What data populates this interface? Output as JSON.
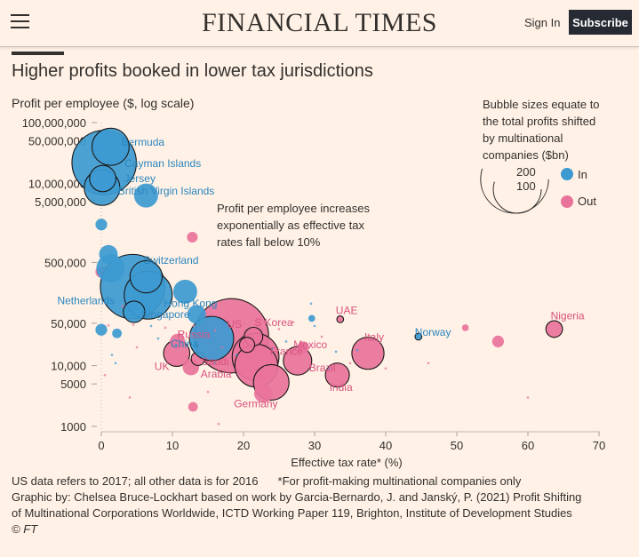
{
  "header": {
    "brand": "FINANCIAL TIMES",
    "sign_in": "Sign In",
    "subscribe": "Subscribe"
  },
  "chart_data": {
    "type": "scatter",
    "title": "Higher profits booked in lower tax jurisdictions",
    "ylabel": "Profit per employee ($, log scale)",
    "xlabel": "Effective tax rate* (%)",
    "xlim": [
      0,
      70
    ],
    "ylim": [
      1000,
      100000000
    ],
    "yscale": "log",
    "x_ticks": [
      "0",
      "10",
      "20",
      "30",
      "40",
      "50",
      "60",
      "70"
    ],
    "y_ticks": [
      {
        "v": 100000000,
        "label": "100,000,000"
      },
      {
        "v": 50000000,
        "label": "50,000,000"
      },
      {
        "v": 10000000,
        "label": "10,000,000"
      },
      {
        "v": 5000000,
        "label": "5,000,000"
      },
      {
        "v": 500000,
        "label": "500,000"
      },
      {
        "v": 50000,
        "label": "50,000"
      },
      {
        "v": 10000,
        "label": "10,000"
      },
      {
        "v": 5000,
        "label": "5000"
      },
      {
        "v": 1000,
        "label": "1000"
      }
    ],
    "colors": {
      "in": "#3d9ad1",
      "out": "#e9739b"
    },
    "legend": {
      "note": [
        "Bubble sizes equate to",
        "the total profits shifted",
        "by multinational",
        "companies ($bn)"
      ],
      "size_labels": [
        "200",
        "100"
      ],
      "in_label": "In",
      "out_label": "Out",
      "placement": "top-right"
    },
    "annotation": [
      "Profit per employee increases",
      "exponentially as effective tax",
      "rates fall below 10%"
    ],
    "series": [
      {
        "name": "In",
        "points": [
          {
            "label": "Bermuda",
            "x": 1.3,
            "y": 40000000,
            "size": 60,
            "outlined": true
          },
          {
            "label": "Cayman Islands",
            "x": 0.4,
            "y": 22000000,
            "size": 180,
            "outlined": true
          },
          {
            "label": "Jersey",
            "x": 0.2,
            "y": 12000000,
            "size": 30,
            "outlined": true
          },
          {
            "label": "British Virgin Islands",
            "x": 0.1,
            "y": 8500000,
            "size": 55,
            "outlined": true
          },
          {
            "label": "",
            "x": 6.3,
            "y": 6300000,
            "size": 25,
            "outlined": false
          },
          {
            "label": "",
            "x": 0.0,
            "y": 2100000,
            "size": 6,
            "outlined": false
          },
          {
            "label": "",
            "x": 1.0,
            "y": 680000,
            "size": 15,
            "outlined": false
          },
          {
            "label": "Switzerland",
            "x": 1.3,
            "y": 400000,
            "size": 35,
            "outlined": false
          },
          {
            "label": "",
            "x": 6.3,
            "y": 290000,
            "size": 45,
            "outlined": true
          },
          {
            "label": "Netherlands",
            "x": 4.4,
            "y": 200000,
            "size": 180,
            "outlined": true
          },
          {
            "label": "",
            "x": 6.6,
            "y": 145000,
            "size": 100,
            "outlined": true
          },
          {
            "label": "Hong Kong",
            "x": 11.8,
            "y": 165000,
            "size": 25,
            "outlined": false
          },
          {
            "label": "Singapore",
            "x": 4.6,
            "y": 77000,
            "size": 20,
            "outlined": true
          },
          {
            "label": "",
            "x": 13.4,
            "y": 70000,
            "size": 15,
            "outlined": false
          },
          {
            "label": "",
            "x": 0.0,
            "y": 39000,
            "size": 6,
            "outlined": false
          },
          {
            "label": "",
            "x": 2.2,
            "y": 34000,
            "size": 4,
            "outlined": false
          },
          {
            "label": "China",
            "x": 15.5,
            "y": 28000,
            "size": 85,
            "outlined": true
          },
          {
            "label": "",
            "x": 29.6,
            "y": 60000,
            "size": 2,
            "outlined": false
          },
          {
            "label": "Norway",
            "x": 44.6,
            "y": 30000,
            "size": 2,
            "outlined": true
          }
        ]
      },
      {
        "name": "Out",
        "points": [
          {
            "label": "",
            "x": 12.8,
            "y": 1300000,
            "size": 5,
            "outlined": false
          },
          {
            "label": "",
            "x": 0.0,
            "y": 350000,
            "size": 6,
            "outlined": false
          },
          {
            "label": "US",
            "x": 18.3,
            "y": 31000,
            "size": 240,
            "outlined": true
          },
          {
            "label": "S Korea",
            "x": 21.4,
            "y": 30000,
            "size": 15,
            "outlined": true
          },
          {
            "label": "",
            "x": 20.5,
            "y": 22000,
            "size": 10,
            "outlined": true
          },
          {
            "label": "Russia",
            "x": 10.7,
            "y": 25000,
            "size": 10,
            "outlined": false
          },
          {
            "label": "France",
            "x": 21.7,
            "y": 14000,
            "size": 95,
            "outlined": true
          },
          {
            "label": "",
            "x": 21.8,
            "y": 10000,
            "size": 80,
            "outlined": true
          },
          {
            "label": "UK",
            "x": 10.6,
            "y": 16000,
            "size": 30,
            "outlined": true
          },
          {
            "label": "Saudi Arabia",
            "x": 13.6,
            "y": 13000,
            "size": 8,
            "outlined": true
          },
          {
            "label": "",
            "x": 12.6,
            "y": 9500,
            "size": 12,
            "outlined": false
          },
          {
            "label": "Germany",
            "x": 23.9,
            "y": 5300,
            "size": 55,
            "outlined": true
          },
          {
            "label": "",
            "x": 22.8,
            "y": 3500,
            "size": 15,
            "outlined": false
          },
          {
            "label": "Brazil",
            "x": 27.6,
            "y": 12000,
            "size": 35,
            "outlined": true
          },
          {
            "label": "Mexico",
            "x": 28.4,
            "y": 20000,
            "size": 6,
            "outlined": false
          },
          {
            "label": "India",
            "x": 33.2,
            "y": 7000,
            "size": 25,
            "outlined": true
          },
          {
            "label": "UAE",
            "x": 33.6,
            "y": 58000,
            "size": 2,
            "outlined": true
          },
          {
            "label": "Italy",
            "x": 37.5,
            "y": 16000,
            "size": 45,
            "outlined": true
          },
          {
            "label": "Nigeria",
            "x": 63.7,
            "y": 40000,
            "size": 12,
            "outlined": true
          },
          {
            "label": "",
            "x": 51.2,
            "y": 42000,
            "size": 2,
            "outlined": false
          },
          {
            "label": "",
            "x": 55.8,
            "y": 25000,
            "size": 6,
            "outlined": false
          },
          {
            "label": "",
            "x": 12.9,
            "y": 2100,
            "size": 4,
            "outlined": false
          }
        ]
      }
    ]
  },
  "footer": {
    "note_left": "US data refers to 2017; all other data is for 2016",
    "note_right": "*For profit-making multinational companies only",
    "credit_1": "Graphic by: Chelsea Bruce-Lockhart based on work by Garcia-Bernardo, J. and Janský, P. (2021) Profit Shifting",
    "credit_2": "of Multinational Corporations Worldwide, ICTD Working Paper 119, Brighton, Institute of Development Studies",
    "copyright": "© FT"
  }
}
